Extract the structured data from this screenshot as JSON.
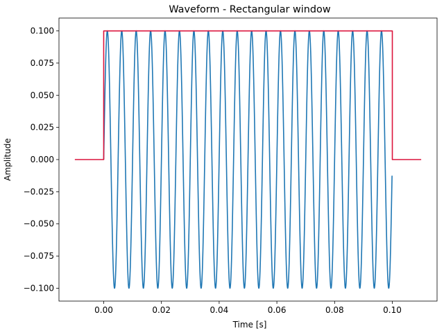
{
  "chart_data": {
    "type": "line",
    "title": "Waveform - Rectangular window",
    "xlabel": "Time [s]",
    "ylabel": "Amplitude",
    "xlim": [
      -0.0155,
      0.1155
    ],
    "ylim": [
      -0.11,
      0.11
    ],
    "x_ticks": [
      0.0,
      0.02,
      0.04,
      0.06,
      0.08,
      0.1
    ],
    "x_tick_labels": [
      "0.00",
      "0.02",
      "0.04",
      "0.06",
      "0.08",
      "0.10"
    ],
    "y_ticks": [
      0.1,
      0.075,
      0.05,
      0.025,
      0.0,
      -0.025,
      -0.05,
      -0.075,
      -0.1
    ],
    "y_tick_labels": [
      "0.100",
      "0.075",
      "0.050",
      "0.025",
      "0.000",
      "−0.025",
      "−0.050",
      "−0.075",
      "−0.100"
    ],
    "grid": false,
    "series": [
      {
        "color": "#1f77b4",
        "kind": "sinusoid",
        "amplitude": 0.1,
        "frequency_hz": 200,
        "t_start": 0.0,
        "t_end": 0.0999
      },
      {
        "color": "#dc143c",
        "kind": "rectangular-window",
        "x": [
          -0.01,
          0.0,
          0.0,
          0.1,
          0.1,
          0.11
        ],
        "y": [
          0.0,
          0.0,
          0.1,
          0.1,
          0.0,
          0.0
        ]
      }
    ]
  }
}
